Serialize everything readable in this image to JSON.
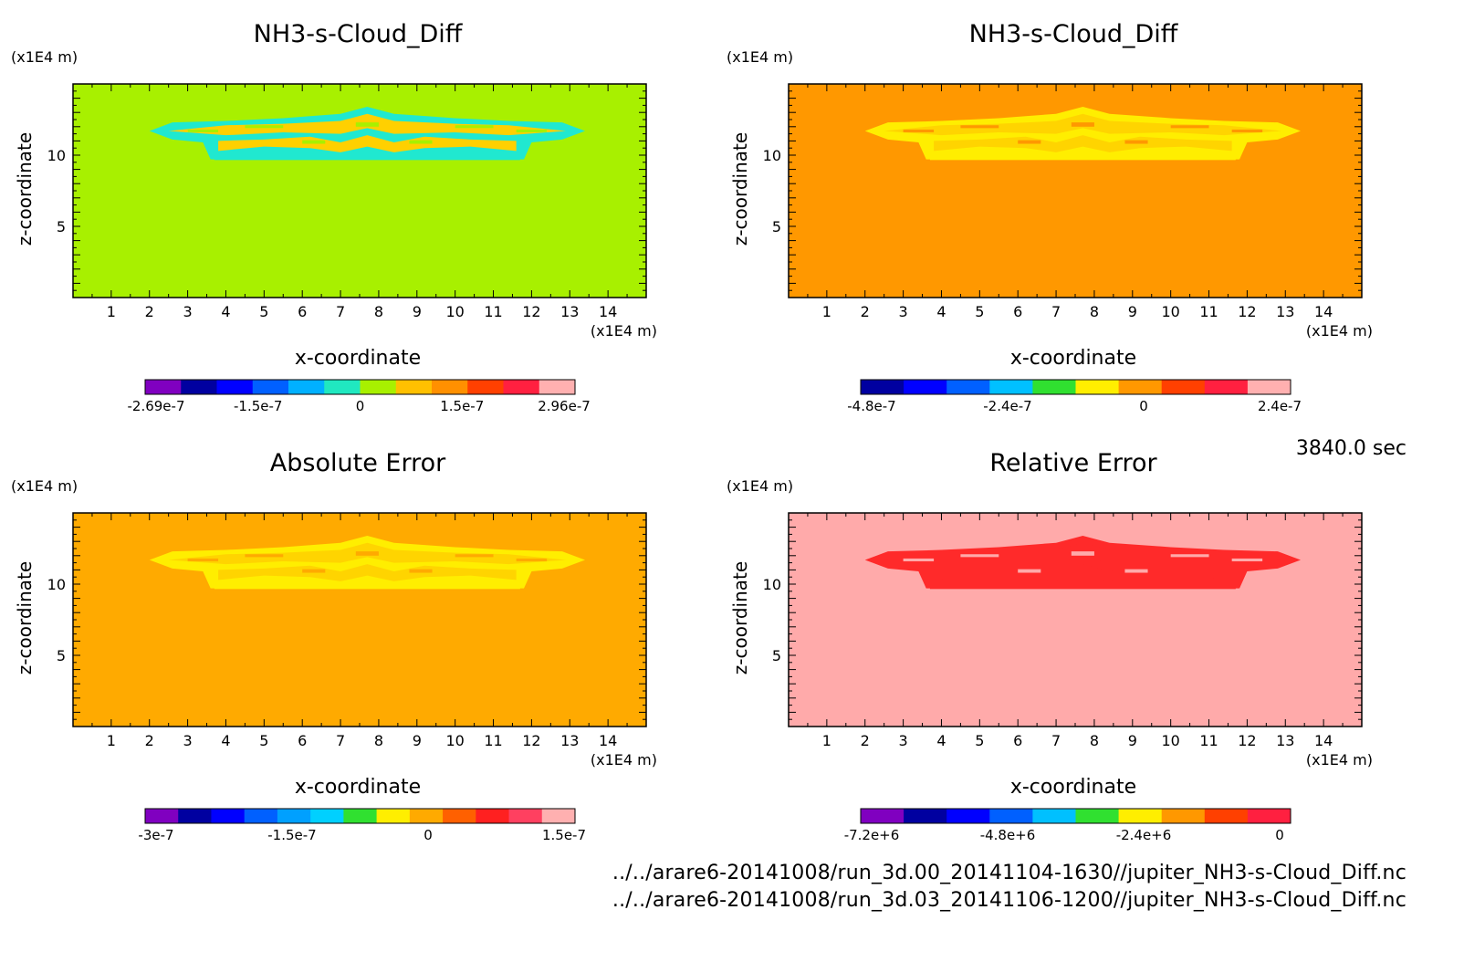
{
  "timestamp": "3840.0 sec",
  "files": [
    "../../arare6-20141008/run_3d.00_20141104-1630//jupiter_NH3-s-Cloud_Diff.nc",
    "../../arare6-20141008/run_3d.03_20141106-1200//jupiter_NH3-s-Cloud_Diff.nc"
  ],
  "chart_data": [
    {
      "type": "heatmap",
      "title": "NH3-s-Cloud_Diff",
      "xlabel": "x-coordinate",
      "ylabel": "z-coordinate",
      "x_unit": "(x1E4 m)",
      "y_unit": "(x1E4 m)",
      "xlim": [
        0,
        15
      ],
      "ylim": [
        0,
        15
      ],
      "x_ticks": [
        "1",
        "2",
        "3",
        "4",
        "5",
        "6",
        "7",
        "8",
        "9",
        "10",
        "11",
        "12",
        "13",
        "14"
      ],
      "y_ticks": [
        "5",
        "10"
      ],
      "background_color": "#a8f000",
      "cloud_colors": [
        "#20e8d0",
        "#ffd000",
        "#a8f000"
      ],
      "colorbar": {
        "colors": [
          "#8000c0",
          "#0000a0",
          "#0000ff",
          "#0060ff",
          "#00b0ff",
          "#20e8c0",
          "#a8f000",
          "#ffc000",
          "#ff9000",
          "#ff4000",
          "#ff2040",
          "#ffb0b0"
        ],
        "labels": [
          "-2.69e-7",
          "-1.5e-7",
          "0",
          "1.5e-7",
          "2.96e-7"
        ]
      }
    },
    {
      "type": "heatmap",
      "title": "NH3-s-Cloud_Diff",
      "xlabel": "x-coordinate",
      "ylabel": "z-coordinate",
      "x_unit": "(x1E4 m)",
      "y_unit": "(x1E4 m)",
      "xlim": [
        0,
        15
      ],
      "ylim": [
        0,
        15
      ],
      "x_ticks": [
        "1",
        "2",
        "3",
        "4",
        "5",
        "6",
        "7",
        "8",
        "9",
        "10",
        "11",
        "12",
        "13",
        "14"
      ],
      "y_ticks": [
        "5",
        "10"
      ],
      "background_color": "#ff9800",
      "cloud_colors": [
        "#ffee00",
        "#ffd400",
        "#ff9800"
      ],
      "colorbar": {
        "colors": [
          "#0000a0",
          "#0000ff",
          "#0060ff",
          "#00c0ff",
          "#30e030",
          "#ffee00",
          "#ff9800",
          "#ff4000",
          "#ff2040",
          "#ffb0b0"
        ],
        "labels": [
          "-4.8e-7",
          "-2.4e-7",
          "0",
          "2.4e-7"
        ]
      }
    },
    {
      "type": "heatmap",
      "title": "Absolute Error",
      "xlabel": "x-coordinate",
      "ylabel": "z-coordinate",
      "x_unit": "(x1E4 m)",
      "y_unit": "(x1E4 m)",
      "xlim": [
        0,
        15
      ],
      "ylim": [
        0,
        15
      ],
      "x_ticks": [
        "1",
        "2",
        "3",
        "4",
        "5",
        "6",
        "7",
        "8",
        "9",
        "10",
        "11",
        "12",
        "13",
        "14"
      ],
      "y_ticks": [
        "5",
        "10"
      ],
      "background_color": "#ffaa00",
      "cloud_colors": [
        "#ffee00",
        "#ffd400",
        "#ffaa00"
      ],
      "colorbar": {
        "colors": [
          "#8000c0",
          "#0000a0",
          "#0000ff",
          "#0060ff",
          "#00a0ff",
          "#00d0ff",
          "#30e030",
          "#ffee00",
          "#ffaa00",
          "#ff6000",
          "#ff2020",
          "#ff4060",
          "#ffb0b0"
        ],
        "labels": [
          "-3e-7",
          "-1.5e-7",
          "0",
          "1.5e-7"
        ]
      }
    },
    {
      "type": "heatmap",
      "title": "Relative Error",
      "xlabel": "x-coordinate",
      "ylabel": "z-coordinate",
      "x_unit": "(x1E4 m)",
      "y_unit": "(x1E4 m)",
      "xlim": [
        0,
        15
      ],
      "ylim": [
        0,
        15
      ],
      "x_ticks": [
        "1",
        "2",
        "3",
        "4",
        "5",
        "6",
        "7",
        "8",
        "9",
        "10",
        "11",
        "12",
        "13",
        "14"
      ],
      "y_ticks": [
        "5",
        "10"
      ],
      "background_color": "#ffaaaa",
      "cloud_colors": [
        "#ff2a2a",
        "#ff2a2a",
        "#ffaaaa"
      ],
      "colorbar": {
        "colors": [
          "#8000c0",
          "#0000a0",
          "#0000ff",
          "#0060ff",
          "#00c0ff",
          "#30e030",
          "#ffee00",
          "#ff9800",
          "#ff4000",
          "#ff2040"
        ],
        "labels": [
          "-7.2e+6",
          "-4.8e+6",
          "-2.4e+6",
          "0"
        ]
      }
    }
  ]
}
